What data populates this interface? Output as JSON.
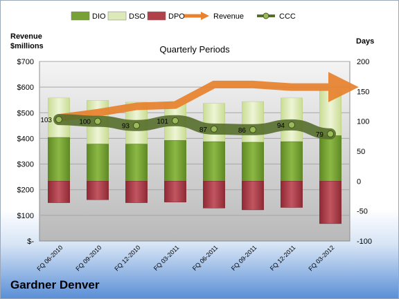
{
  "chart_data": {
    "type": "bar",
    "title": "Quarterly Periods",
    "company": "Gardner Denver",
    "left_axis_title": [
      "Revenue",
      "$millions"
    ],
    "right_axis_title": "Days",
    "left_ticks": [
      "$-",
      "$100",
      "$200",
      "$300",
      "$400",
      "$500",
      "$600",
      "$700"
    ],
    "right_ticks": [
      "-100",
      "-50",
      "0",
      "50",
      "100",
      "150",
      "200"
    ],
    "ylim_days": [
      -100,
      200
    ],
    "ylim_revenue": [
      0,
      700
    ],
    "categories": [
      "FQ 06-2010",
      "FQ 09-2010",
      "FQ 12-2010",
      "FQ 03-2011",
      "FQ 06-2011",
      "FQ 09-2011",
      "FQ 12-2011",
      "FQ 03-2012"
    ],
    "legend": [
      "DIO",
      "DSO",
      "DPO",
      "Revenue",
      "CCC"
    ],
    "series": [
      {
        "name": "DIO",
        "values": [
          73,
          62,
          62,
          68,
          66,
          65,
          66,
          76
        ],
        "color": "#77a035"
      },
      {
        "name": "DSO",
        "values": [
          66,
          73,
          70,
          64,
          64,
          68,
          73,
          77
        ],
        "color": "#dde9b8"
      },
      {
        "name": "DPO",
        "values": [
          -36,
          -31,
          -36,
          -35,
          -45,
          -48,
          -44,
          -71
        ],
        "color": "#b0404a"
      },
      {
        "name": "Revenue",
        "values": [
          480,
          500,
          525,
          530,
          610,
          610,
          600,
          600
        ],
        "color": "#e8822e"
      },
      {
        "name": "CCC",
        "values": [
          103,
          100,
          93,
          101,
          87,
          86,
          94,
          79
        ],
        "color": "#566e2b"
      }
    ],
    "ccc_labels": [
      "103",
      "100",
      "93",
      "101",
      "87",
      "86",
      "94",
      "79"
    ],
    "grid": true,
    "legend_position": "top"
  }
}
